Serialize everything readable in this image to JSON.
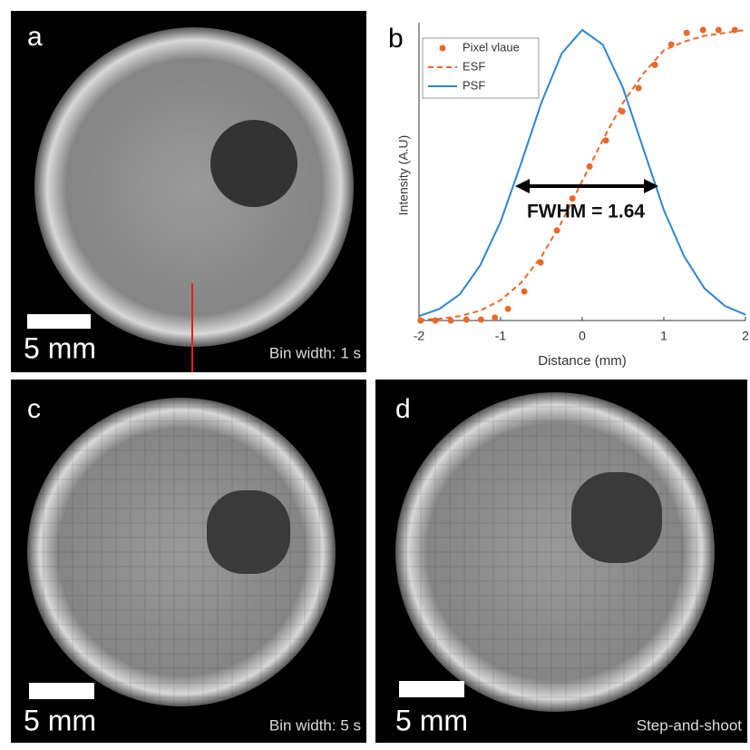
{
  "panels": {
    "a": {
      "label": "a",
      "scale": "5 mm",
      "note": "Bin width: 1 s"
    },
    "c": {
      "label": "c",
      "scale": "5 mm",
      "note": "Bin width: 5 s"
    },
    "d": {
      "label": "d",
      "scale": "5 mm",
      "note": "Step-and-shoot"
    }
  },
  "chart_data": {
    "type": "line",
    "panel_label": "b",
    "xlabel": "Distance (mm)",
    "ylabel": "Intensity (A.U)",
    "annotation": "FWHM = 1.64",
    "xlim": [
      -2,
      2
    ],
    "xticks": [
      -2,
      -1,
      0,
      1,
      2
    ],
    "ylim": [
      0,
      1
    ],
    "legend": "upper left",
    "series": [
      {
        "name": "Pixel vlaue",
        "color": "#e8692a",
        "style": "markers",
        "x": [
          -1.98,
          -1.8,
          -1.61,
          -1.42,
          -1.24,
          -1.07,
          -0.91,
          -0.71,
          -0.51,
          -0.31,
          -0.12,
          0.09,
          0.29,
          0.49,
          0.69,
          0.89,
          1.09,
          1.28,
          1.48,
          1.67,
          1.87
        ],
        "values": [
          0,
          0,
          0,
          0.003,
          0.003,
          0.01,
          0.04,
          0.1,
          0.2,
          0.31,
          0.42,
          0.53,
          0.62,
          0.72,
          0.8,
          0.88,
          0.95,
          0.99,
          1,
          1,
          1
        ]
      },
      {
        "name": "ESF",
        "color": "#e8692a",
        "style": "dashed",
        "x": [
          -2,
          -1.75,
          -1.5,
          -1.25,
          -1,
          -0.75,
          -0.5,
          -0.25,
          0,
          0.25,
          0.5,
          0.75,
          1,
          1.25,
          1.5,
          1.75,
          2
        ],
        "values": [
          0.002,
          0.006,
          0.015,
          0.034,
          0.07,
          0.13,
          0.22,
          0.34,
          0.48,
          0.62,
          0.75,
          0.85,
          0.93,
          0.96,
          0.98,
          0.99,
          1
        ]
      },
      {
        "name": "PSF",
        "color": "#2e86cf",
        "style": "solid",
        "x": [
          -2,
          -1.75,
          -1.5,
          -1.25,
          -1,
          -0.75,
          -0.5,
          -0.25,
          0,
          0.25,
          0.5,
          0.75,
          1,
          1.25,
          1.5,
          1.75,
          2
        ],
        "values": [
          0.015,
          0.04,
          0.09,
          0.19,
          0.34,
          0.54,
          0.75,
          0.92,
          1,
          0.95,
          0.8,
          0.59,
          0.38,
          0.22,
          0.11,
          0.05,
          0.02
        ]
      }
    ]
  }
}
